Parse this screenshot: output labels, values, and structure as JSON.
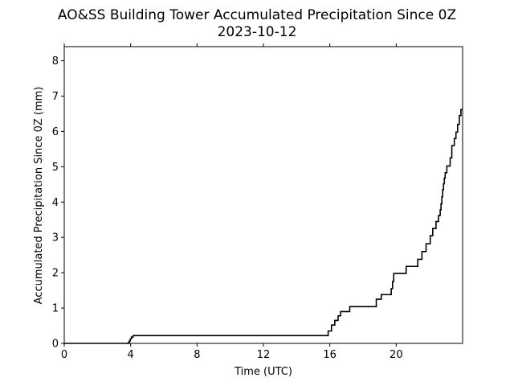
{
  "chart_data": {
    "type": "line",
    "title": "AO&SS Building Tower Accumulated Precipitation Since 0Z",
    "subtitle": "2023-10-12",
    "xlabel": "Time (UTC)",
    "ylabel": "Accumulated Precipitation Since 0Z (mm)",
    "xlim": [
      0,
      24
    ],
    "ylim": [
      0,
      8.4
    ],
    "xticks": [
      0,
      4,
      8,
      12,
      16,
      20
    ],
    "xtick_labels": [
      "0",
      "4",
      "8",
      "12",
      "16",
      "20"
    ],
    "yticks": [
      0,
      1,
      2,
      3,
      4,
      5,
      6,
      7,
      8
    ],
    "ytick_labels": [
      "0",
      "1",
      "2",
      "3",
      "4",
      "5",
      "6",
      "7",
      "8"
    ],
    "grid": false,
    "line_color": "#000000",
    "series": [
      {
        "step": true,
        "x": [
          0,
          3.85,
          3.92,
          3.98,
          4.05,
          4.15,
          15.7,
          15.9,
          16.1,
          16.3,
          16.5,
          16.65,
          17.2,
          18.8,
          19.1,
          19.7,
          19.78,
          19.85,
          20.6,
          21.3,
          21.55,
          21.8,
          22.05,
          22.2,
          22.4,
          22.55,
          22.65,
          22.7,
          22.75,
          22.8,
          22.85,
          22.9,
          22.95,
          23.05,
          23.25,
          23.35,
          23.5,
          23.6,
          23.7,
          23.8,
          23.9,
          24.0
        ],
        "y": [
          0,
          0.02,
          0.07,
          0.13,
          0.18,
          0.22,
          0.22,
          0.35,
          0.52,
          0.65,
          0.78,
          0.9,
          1.04,
          1.25,
          1.38,
          1.55,
          1.75,
          1.98,
          2.18,
          2.38,
          2.6,
          2.82,
          3.05,
          3.25,
          3.45,
          3.62,
          3.78,
          3.95,
          4.15,
          4.35,
          4.52,
          4.68,
          4.83,
          5.02,
          5.25,
          5.6,
          5.8,
          5.98,
          6.2,
          6.45,
          6.62,
          6.62
        ]
      }
    ]
  }
}
